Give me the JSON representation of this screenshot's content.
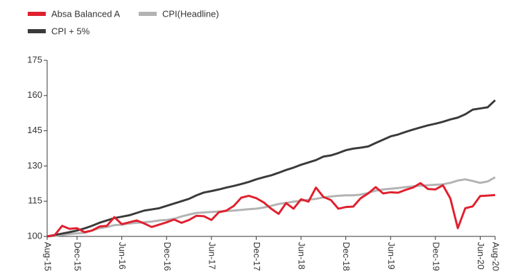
{
  "chart_data": {
    "type": "line",
    "categories": [
      "Aug-15",
      null,
      null,
      null,
      "Dec-15",
      null,
      null,
      null,
      null,
      null,
      "Jun-16",
      null,
      null,
      null,
      null,
      null,
      "Dec-16",
      null,
      null,
      null,
      null,
      null,
      "Jun-17",
      null,
      null,
      null,
      null,
      null,
      "Dec-17",
      null,
      null,
      null,
      null,
      null,
      "Jun-18",
      null,
      null,
      null,
      null,
      null,
      "Dec-18",
      null,
      null,
      null,
      null,
      null,
      "Jun-19",
      null,
      null,
      null,
      null,
      null,
      "Dec-19",
      null,
      null,
      null,
      null,
      null,
      "Jun-20",
      null,
      "Aug-20"
    ],
    "series": [
      {
        "name": "Absa Balanced A",
        "color": "#e0202e",
        "values": [
          100,
          100.5,
          104.5,
          103.2,
          103.5,
          101.8,
          102.5,
          104.2,
          104.5,
          108.2,
          105.2,
          106,
          106.8,
          105.5,
          104,
          105,
          106,
          107.2,
          105.8,
          107,
          108.8,
          108.6,
          107,
          110.3,
          111,
          113,
          116.5,
          117.3,
          116.3,
          114.5,
          111.8,
          109.6,
          114.2,
          111.8,
          115.8,
          114.8,
          120.8,
          116.8,
          115.5,
          111.8,
          112.5,
          112.7,
          116.3,
          118.3,
          121,
          118.3,
          118.8,
          118.6,
          119.8,
          120.8,
          122.7,
          120.2,
          120,
          121.8,
          116.2,
          103.5,
          112,
          112.8,
          117.2,
          117.4,
          117.6
        ]
      },
      {
        "name": "CPI(Headline)",
        "color": "#b3b3b3",
        "values": [
          100,
          100.2,
          100.6,
          101,
          101.3,
          101.5,
          102.5,
          103.5,
          104,
          104.8,
          105,
          105.5,
          105.8,
          106,
          106.3,
          106.8,
          107,
          107.5,
          108.5,
          109.3,
          110,
          110.2,
          110.4,
          110.6,
          110.8,
          111,
          111.3,
          111.6,
          111.8,
          112.3,
          113,
          113.8,
          114.3,
          114.8,
          115.2,
          115.6,
          116,
          116.6,
          117,
          117.3,
          117.5,
          117.5,
          117.8,
          118.5,
          119.5,
          120,
          120.3,
          120.6,
          121,
          121.3,
          121.6,
          121.8,
          122,
          122.2,
          122.8,
          123.8,
          124.3,
          123.6,
          122.8,
          123.4,
          125.2
        ]
      },
      {
        "name": "CPI + 5%",
        "color": "#3a3a3a",
        "values": [
          100,
          100.6,
          101.2,
          101.8,
          102.5,
          103.4,
          104.5,
          105.8,
          106.8,
          107.8,
          108.4,
          109,
          110,
          111,
          111.5,
          112,
          113,
          114,
          115,
          116,
          117.5,
          118.7,
          119.3,
          120,
          120.8,
          121.5,
          122.3,
          123.2,
          124.3,
          125.2,
          126,
          127.1,
          128.3,
          129.3,
          130.5,
          131.5,
          132.5,
          134,
          134.5,
          135.5,
          136.7,
          137.4,
          137.8,
          138.3,
          139.8,
          141.2,
          142.6,
          143.4,
          144.5,
          145.5,
          146.4,
          147.3,
          148,
          148.8,
          149.8,
          150.6,
          152,
          154,
          154.5,
          155,
          158
        ]
      }
    ],
    "ylim": [
      100,
      175
    ],
    "yticks": [
      100,
      115,
      130,
      145,
      160,
      175
    ]
  }
}
